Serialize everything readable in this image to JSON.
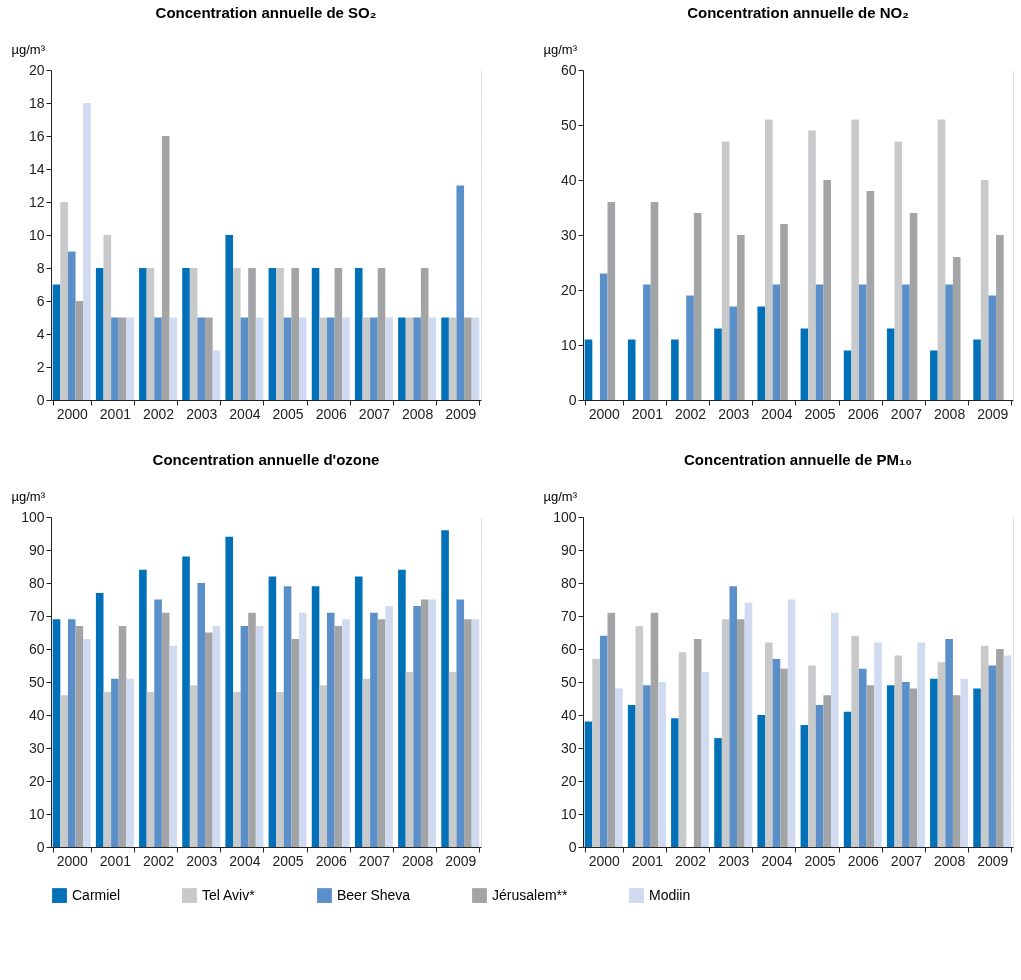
{
  "chart_data": [
    {
      "type": "bar",
      "title": "Concentration annuelle de SO₂",
      "ylabel": "µg/m³",
      "categories": [
        "2000",
        "2001",
        "2002",
        "2003",
        "2004",
        "2005",
        "2006",
        "2007",
        "2008",
        "2009"
      ],
      "ylim": [
        0,
        20
      ],
      "yticks": [
        0,
        2,
        4,
        6,
        8,
        10,
        12,
        14,
        16,
        18,
        20
      ],
      "grid": true,
      "legend": "bottom",
      "series": [
        {
          "name": "Carmiel",
          "color": "#0070b8",
          "values": [
            7,
            8,
            8,
            8,
            10,
            8,
            8,
            8,
            5,
            5
          ]
        },
        {
          "name": "Tel Aviv*",
          "color": "#c8c9cb",
          "values": [
            12,
            10,
            8,
            8,
            8,
            8,
            5,
            5,
            5,
            5
          ]
        },
        {
          "name": "Beer Sheva",
          "color": "#5a8fc9",
          "values": [
            9,
            5,
            5,
            5,
            5,
            5,
            5,
            5,
            5,
            13
          ]
        },
        {
          "name": "Jérusalem**",
          "color": "#a3a4a6",
          "values": [
            6,
            5,
            16,
            5,
            8,
            8,
            8,
            8,
            8,
            5
          ]
        },
        {
          "name": "Modiin",
          "color": "#d0daf0",
          "values": [
            18,
            5,
            5,
            3,
            5,
            5,
            5,
            5,
            5,
            5
          ]
        }
      ]
    },
    {
      "type": "bar",
      "title": "Concentration annuelle de NO₂",
      "ylabel": "µg/m³",
      "categories": [
        "2000",
        "2001",
        "2002",
        "2003",
        "2004",
        "2005",
        "2006",
        "2007",
        "2008",
        "2009"
      ],
      "ylim": [
        0,
        60
      ],
      "yticks": [
        0,
        10,
        20,
        30,
        40,
        50,
        60
      ],
      "grid": true,
      "legend": "bottom",
      "series": [
        {
          "name": "Carmiel",
          "color": "#0070b8",
          "values": [
            11,
            11,
            11,
            13,
            17,
            13,
            9,
            13,
            9,
            11
          ]
        },
        {
          "name": "Tel Aviv*",
          "color": "#c8c9cb",
          "values": [
            null,
            null,
            null,
            47,
            51,
            49,
            51,
            47,
            51,
            40
          ]
        },
        {
          "name": "Beer Sheva",
          "color": "#5a8fc9",
          "values": [
            23,
            21,
            19,
            17,
            21,
            21,
            21,
            21,
            21,
            19
          ]
        },
        {
          "name": "Jérusalem**",
          "color": "#a3a4a6",
          "values": [
            36,
            36,
            34,
            30,
            32,
            40,
            38,
            34,
            26,
            30
          ]
        },
        {
          "name": "Modiin",
          "color": "#d0daf0",
          "values": [
            null,
            null,
            null,
            null,
            null,
            null,
            null,
            null,
            null,
            null
          ]
        }
      ]
    },
    {
      "type": "bar",
      "title": "Concentration annuelle d'ozone",
      "ylabel": "µg/m³",
      "categories": [
        "2000",
        "2001",
        "2002",
        "2003",
        "2004",
        "2005",
        "2006",
        "2007",
        "2008",
        "2009"
      ],
      "ylim": [
        0,
        100
      ],
      "yticks": [
        0,
        10,
        20,
        30,
        40,
        50,
        60,
        70,
        80,
        90,
        100
      ],
      "grid": true,
      "legend": "bottom",
      "series": [
        {
          "name": "Carmiel",
          "color": "#0070b8",
          "values": [
            69,
            77,
            84,
            88,
            94,
            82,
            79,
            82,
            84,
            96
          ]
        },
        {
          "name": "Tel Aviv*",
          "color": "#c8c9cb",
          "values": [
            46,
            47,
            47,
            49,
            47,
            47,
            49,
            51,
            53,
            53
          ]
        },
        {
          "name": "Beer Sheva",
          "color": "#5a8fc9",
          "values": [
            69,
            51,
            75,
            80,
            67,
            79,
            71,
            71,
            73,
            75
          ]
        },
        {
          "name": "Jérusalem**",
          "color": "#a3a4a6",
          "values": [
            67,
            67,
            71,
            65,
            71,
            63,
            67,
            69,
            75,
            69
          ]
        },
        {
          "name": "Modiin",
          "color": "#d0daf0",
          "values": [
            63,
            51,
            61,
            67,
            67,
            71,
            69,
            73,
            75,
            69
          ]
        }
      ]
    },
    {
      "type": "bar",
      "title": "Concentration annuelle de PM₁₀",
      "ylabel": "µg/m³",
      "categories": [
        "2000",
        "2001",
        "2002",
        "2003",
        "2004",
        "2005",
        "2006",
        "2007",
        "2008",
        "2009"
      ],
      "ylim": [
        0,
        100
      ],
      "yticks": [
        0,
        10,
        20,
        30,
        40,
        50,
        60,
        70,
        80,
        90,
        100
      ],
      "grid": true,
      "legend": "bottom",
      "series": [
        {
          "name": "Carmiel",
          "color": "#0070b8",
          "values": [
            38,
            43,
            39,
            33,
            40,
            37,
            41,
            49,
            51,
            48
          ]
        },
        {
          "name": "Tel Aviv*",
          "color": "#c8c9cb",
          "values": [
            57,
            67,
            59,
            69,
            62,
            55,
            64,
            58,
            56,
            61
          ]
        },
        {
          "name": "Beer Sheva",
          "color": "#5a8fc9",
          "values": [
            64,
            49,
            null,
            79,
            57,
            43,
            54,
            50,
            63,
            55
          ]
        },
        {
          "name": "Jérusalem**",
          "color": "#a3a4a6",
          "values": [
            71,
            71,
            63,
            69,
            54,
            46,
            49,
            48,
            46,
            60
          ]
        },
        {
          "name": "Modiin",
          "color": "#d0daf0",
          "values": [
            48,
            50,
            53,
            74,
            75,
            71,
            62,
            62,
            51,
            58
          ]
        }
      ]
    }
  ]
}
